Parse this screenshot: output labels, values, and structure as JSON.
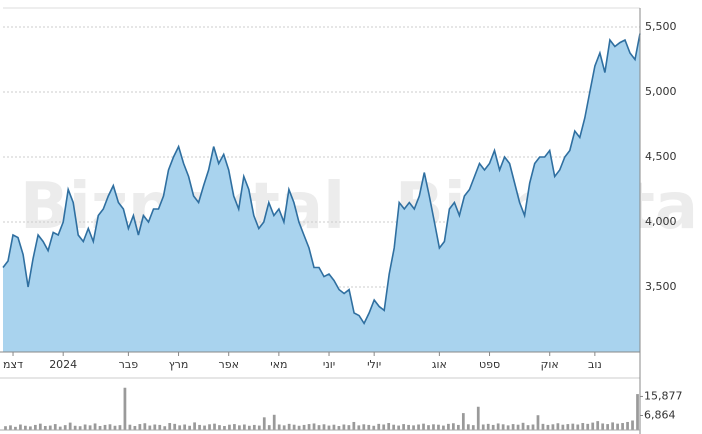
{
  "watermark": "Bizportal",
  "chart_data": [
    {
      "type": "area",
      "color": "#2f6fa0",
      "fill": "#a9d3ee",
      "ylim": [
        3000,
        5646
      ],
      "yticks": [
        {
          "value": 3500,
          "label": "3,500"
        },
        {
          "value": 4000,
          "label": "4,000"
        },
        {
          "value": 4500,
          "label": "4,500"
        },
        {
          "value": 5000,
          "label": "5,000"
        },
        {
          "value": 5500,
          "label": "5,500"
        }
      ],
      "grid": true,
      "xlim": [
        0,
        127
      ],
      "xticks": [
        {
          "value": 2,
          "label": "דצמ"
        },
        {
          "value": 12,
          "label": "2024"
        },
        {
          "value": 25,
          "label": "פבר"
        },
        {
          "value": 35,
          "label": "מרץ"
        },
        {
          "value": 45,
          "label": "אפר"
        },
        {
          "value": 55,
          "label": "מאי"
        },
        {
          "value": 65,
          "label": "יוני"
        },
        {
          "value": 74,
          "label": "יולי"
        },
        {
          "value": 87,
          "label": "אוג"
        },
        {
          "value": 97,
          "label": "ספט"
        },
        {
          "value": 109,
          "label": "אוק"
        },
        {
          "value": 118,
          "label": "נוב"
        }
      ],
      "values": [
        3650,
        3700,
        3900,
        3880,
        3750,
        3500,
        3720,
        3900,
        3850,
        3780,
        3920,
        3900,
        4000,
        4250,
        4150,
        3900,
        3850,
        3950,
        3850,
        4050,
        4100,
        4200,
        4280,
        4150,
        4100,
        3950,
        4050,
        3900,
        4050,
        4000,
        4100,
        4100,
        4200,
        4400,
        4500,
        4580,
        4450,
        4350,
        4200,
        4150,
        4280,
        4400,
        4580,
        4450,
        4520,
        4400,
        4200,
        4100,
        4350,
        4250,
        4050,
        3950,
        4000,
        4150,
        4050,
        4100,
        4000,
        4250,
        4150,
        4000,
        3900,
        3800,
        3650,
        3650,
        3580,
        3600,
        3550,
        3480,
        3450,
        3480,
        3300,
        3280,
        3220,
        3300,
        3400,
        3350,
        3320,
        3600,
        3800,
        4150,
        4100,
        4150,
        4100,
        4200,
        4380,
        4200,
        4000,
        3800,
        3850,
        4100,
        4150,
        4050,
        4200,
        4250,
        4350,
        4450,
        4400,
        4450,
        4550,
        4400,
        4500,
        4450,
        4300,
        4150,
        4050,
        4300,
        4450,
        4500,
        4500,
        4550,
        4350,
        4400,
        4500,
        4550,
        4700,
        4650,
        4800,
        5000,
        5200,
        5300,
        5150,
        5400,
        5350,
        5380,
        5400,
        5300,
        5250,
        5450
      ]
    },
    {
      "type": "bar",
      "color": "#9a9a9a",
      "ylim": [
        0,
        21300
      ],
      "yticks": [
        {
          "value": 6864,
          "label": "6,864"
        },
        {
          "value": 15877,
          "label": "15,877"
        }
      ],
      "values": [
        1800,
        2200,
        1500,
        2600,
        2000,
        1700,
        2400,
        3000,
        1900,
        2100,
        2800,
        1600,
        2300,
        3500,
        2000,
        1800,
        2600,
        2200,
        3100,
        1900,
        2400,
        2700,
        2000,
        2300,
        20000,
        2500,
        1900,
        2800,
        3200,
        2100,
        2600,
        2400,
        1800,
        3300,
        2900,
        2200,
        2600,
        2000,
        3600,
        2400,
        2100,
        2700,
        3000,
        2300,
        1900,
        2500,
        2800,
        2200,
        2600,
        2000,
        2400,
        2100,
        6000,
        2300,
        7200,
        2600,
        2200,
        2900,
        2500,
        2000,
        2400,
        2800,
        3100,
        2300,
        2700,
        2100,
        2500,
        1900,
        2600,
        2300,
        3800,
        2200,
        2700,
        2400,
        2000,
        2900,
        2600,
        3300,
        2500,
        2100,
        2800,
        2400,
        2200,
        2600,
        3000,
        2300,
        2700,
        2500,
        2100,
        2900,
        3200,
        2400,
        8000,
        2700,
        2300,
        11000,
        2600,
        2900,
        2400,
        3100,
        2700,
        2200,
        2800,
        2500,
        3400,
        2300,
        2600,
        7000,
        2900,
        2400,
        2700,
        3200,
        2500,
        2800,
        3000,
        2600,
        3300,
        2900,
        3500,
        4200,
        3100,
        2800,
        3600,
        3000,
        3300,
        3800,
        4500,
        17000
      ]
    }
  ]
}
